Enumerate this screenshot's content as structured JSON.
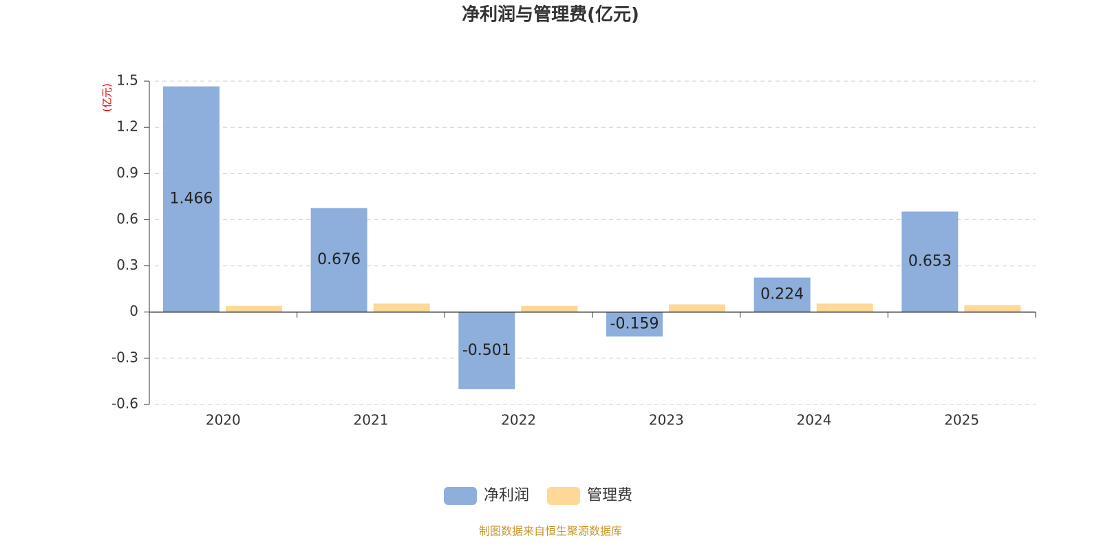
{
  "chart_data": {
    "type": "bar",
    "title": "净利润与管理费(亿元)",
    "y_unit": "(亿元)",
    "categories": [
      "2020",
      "2021",
      "2022",
      "2023",
      "2024",
      "2025"
    ],
    "series": [
      {
        "name": "净利润",
        "color": "#8eaedb",
        "values": [
          1.466,
          0.676,
          -0.501,
          -0.159,
          0.224,
          0.653
        ],
        "show_labels": true
      },
      {
        "name": "管理费",
        "color": "#fdd896",
        "values": [
          0.04,
          0.055,
          0.04,
          0.05,
          0.055,
          0.045
        ],
        "show_labels": false
      }
    ],
    "ylim": [
      -0.6,
      1.5
    ],
    "yticks": [
      -0.6,
      -0.3,
      0,
      0.3,
      0.6,
      0.9,
      1.2,
      1.5
    ],
    "grid": true,
    "source": "制图数据来自恒生聚源数据库"
  }
}
